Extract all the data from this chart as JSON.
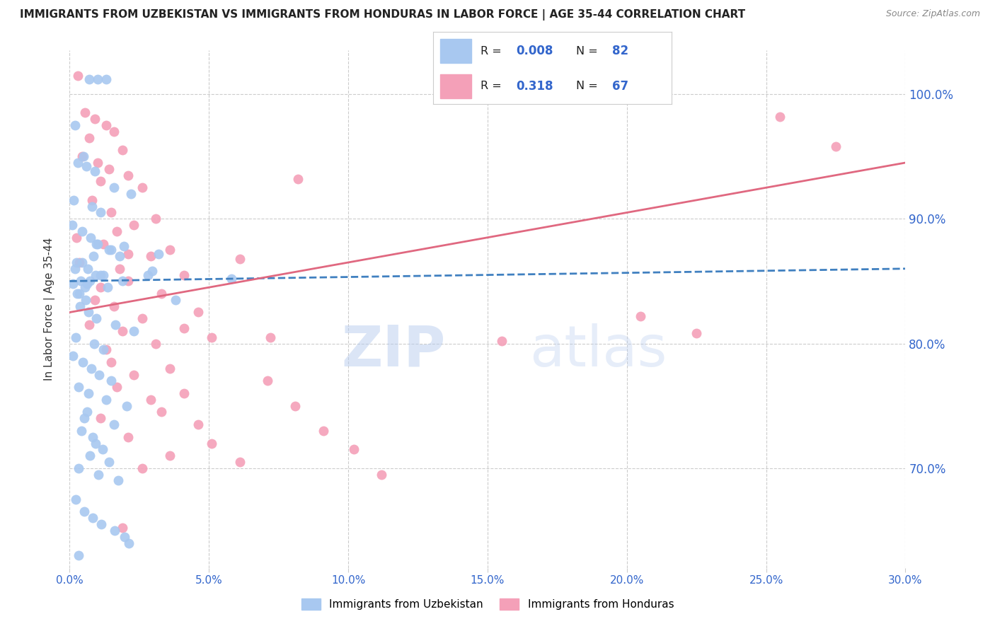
{
  "title": "IMMIGRANTS FROM UZBEKISTAN VS IMMIGRANTS FROM HONDURAS IN LABOR FORCE | AGE 35-44 CORRELATION CHART",
  "source": "Source: ZipAtlas.com",
  "xlabel_vals": [
    0.0,
    5.0,
    10.0,
    15.0,
    20.0,
    25.0,
    30.0
  ],
  "ylabel_vals": [
    70.0,
    80.0,
    90.0,
    100.0
  ],
  "xmin": 0.0,
  "xmax": 30.0,
  "ymin": 62.0,
  "ymax": 103.5,
  "blue_color": "#A8C8F0",
  "pink_color": "#F4A0B8",
  "blue_line_color": "#4080C0",
  "pink_line_color": "#E06880",
  "watermark_zip": "ZIP",
  "watermark_atlas": "atlas",
  "ylabel": "In Labor Force | Age 35-44",
  "blue_r": "0.008",
  "blue_n": "82",
  "pink_r": "0.318",
  "pink_n": "67",
  "blue_scatter_x": [
    0.4,
    1.0,
    0.7,
    1.3,
    0.2,
    0.5,
    0.3,
    0.6,
    0.9,
    1.6,
    2.2,
    0.15,
    0.8,
    1.1,
    0.1,
    0.45,
    0.75,
    1.0,
    1.4,
    1.8,
    0.25,
    0.65,
    1.2,
    1.9,
    0.55,
    0.35,
    0.95,
    1.5,
    0.85,
    0.45,
    0.18,
    1.1,
    0.72,
    1.35,
    0.28,
    0.58,
    3.2,
    0.38,
    0.68,
    0.95,
    1.65,
    2.3,
    0.22,
    0.88,
    1.22,
    0.12,
    0.48,
    0.78,
    1.05,
    1.48,
    0.32,
    0.68,
    1.32,
    2.05,
    0.62,
    0.52,
    1.95,
    1.58,
    0.42,
    0.82,
    2.8,
    0.92,
    1.18,
    0.72,
    1.42,
    0.32,
    0.62,
    3.8,
    1.02,
    1.75,
    2.95,
    0.22,
    0.92,
    5.8,
    0.12,
    0.52,
    0.82,
    1.12,
    1.62,
    1.98,
    2.12,
    0.32
  ],
  "blue_scatter_y": [
    85.0,
    101.2,
    101.2,
    101.2,
    97.5,
    95.0,
    94.5,
    94.2,
    93.8,
    92.5,
    92.0,
    91.5,
    91.0,
    90.5,
    89.5,
    89.0,
    88.5,
    88.0,
    87.5,
    87.0,
    86.5,
    86.0,
    85.5,
    85.0,
    84.5,
    84.0,
    88.0,
    87.5,
    87.0,
    86.5,
    86.0,
    85.5,
    85.0,
    84.5,
    84.0,
    83.5,
    87.2,
    83.0,
    82.5,
    82.0,
    81.5,
    81.0,
    80.5,
    80.0,
    79.5,
    79.0,
    78.5,
    78.0,
    77.5,
    77.0,
    76.5,
    76.0,
    75.5,
    75.0,
    74.5,
    74.0,
    87.8,
    73.5,
    73.0,
    72.5,
    85.5,
    72.0,
    71.5,
    71.0,
    70.5,
    70.0,
    84.8,
    83.5,
    69.5,
    69.0,
    85.8,
    67.5,
    85.5,
    85.2,
    84.8,
    66.5,
    66.0,
    65.5,
    65.0,
    64.5,
    64.0,
    63.0
  ],
  "pink_scatter_x": [
    0.3,
    0.55,
    0.9,
    1.3,
    1.6,
    0.7,
    1.9,
    0.45,
    1.0,
    1.4,
    2.1,
    1.1,
    2.6,
    0.8,
    1.5,
    3.1,
    2.3,
    1.7,
    0.25,
    1.2,
    3.6,
    2.9,
    0.35,
    1.8,
    4.1,
    2.1,
    1.1,
    3.3,
    0.9,
    1.6,
    4.6,
    2.6,
    0.7,
    1.9,
    5.1,
    3.1,
    1.3,
    2.1,
    6.1,
    1.5,
    3.6,
    2.3,
    7.1,
    1.7,
    4.1,
    2.9,
    8.1,
    3.3,
    1.1,
    4.6,
    9.1,
    2.1,
    5.1,
    1.9,
    10.2,
    3.6,
    6.1,
    2.6,
    11.2,
    4.1,
    7.2,
    15.5,
    20.5,
    22.5,
    25.5,
    27.5,
    8.2
  ],
  "pink_scatter_y": [
    101.5,
    98.5,
    98.0,
    97.5,
    97.0,
    96.5,
    95.5,
    95.0,
    94.5,
    94.0,
    93.5,
    93.0,
    92.5,
    91.5,
    90.5,
    90.0,
    89.5,
    89.0,
    88.5,
    88.0,
    87.5,
    87.0,
    86.5,
    86.0,
    85.5,
    85.0,
    84.5,
    84.0,
    83.5,
    83.0,
    82.5,
    82.0,
    81.5,
    81.0,
    80.5,
    80.0,
    79.5,
    87.2,
    86.8,
    78.5,
    78.0,
    77.5,
    77.0,
    76.5,
    76.0,
    75.5,
    75.0,
    74.5,
    74.0,
    73.5,
    73.0,
    72.5,
    72.0,
    65.2,
    71.5,
    71.0,
    70.5,
    70.0,
    69.5,
    81.2,
    80.5,
    80.2,
    82.2,
    80.8,
    98.2,
    95.8,
    93.2
  ],
  "blue_trend_x": [
    0.0,
    30.0
  ],
  "blue_trend_y": [
    85.0,
    86.0
  ],
  "pink_trend_x": [
    0.0,
    30.0
  ],
  "pink_trend_y": [
    82.5,
    94.5
  ]
}
